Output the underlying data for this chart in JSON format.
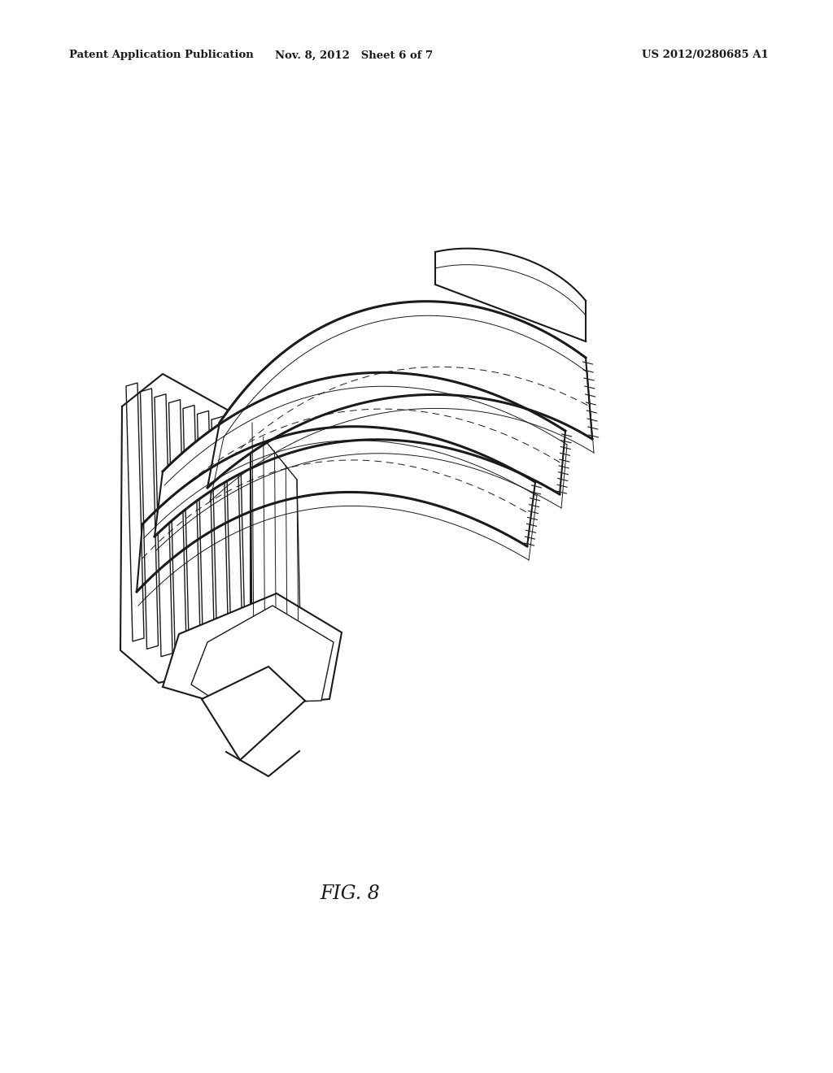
{
  "background_color": "#ffffff",
  "line_color": "#1a1a1a",
  "header_left": "Patent Application Publication",
  "header_center": "Nov. 8, 2012   Sheet 6 of 7",
  "header_right": "US 2012/0280685 A1",
  "figure_label": "FIG. 8",
  "fig_width": 10.24,
  "fig_height": 13.2,
  "dpi": 100
}
